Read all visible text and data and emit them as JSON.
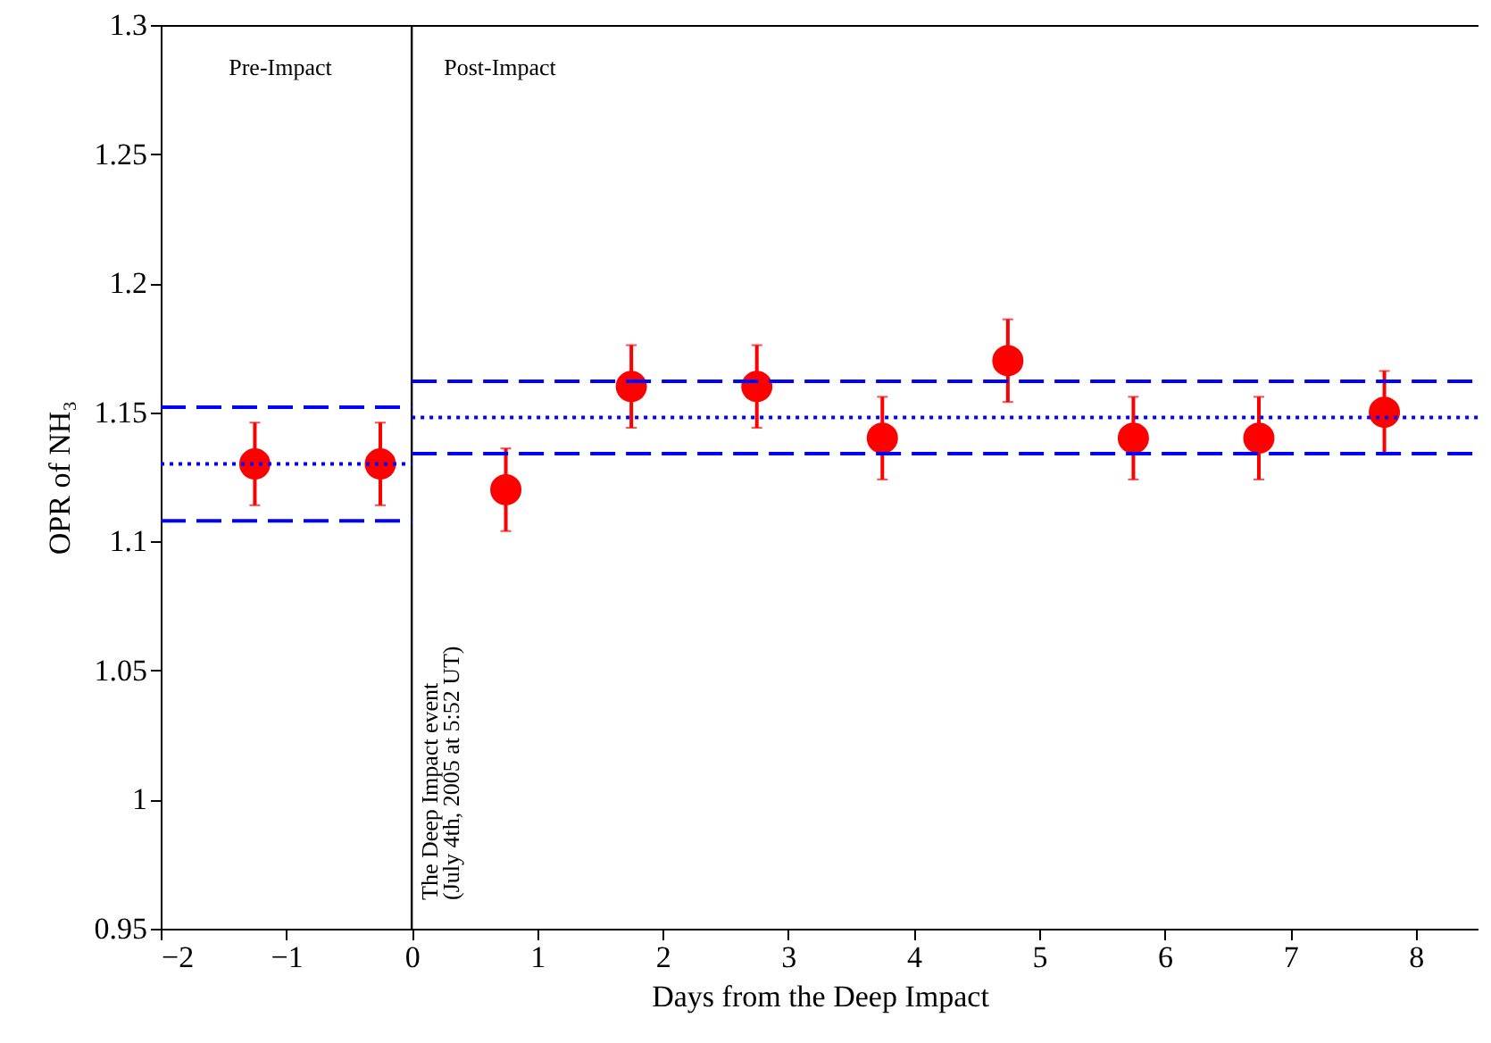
{
  "chart_data": {
    "type": "scatter",
    "xlabel": "Days from the Deep Impact",
    "ylabel": "OPR of NH₃",
    "xlim": [
      -2,
      8.5
    ],
    "xticks": [
      -2,
      -1,
      0,
      1,
      2,
      3,
      4,
      5,
      6,
      7,
      8
    ],
    "ylim": [
      0.95,
      1.3
    ],
    "yticks": [
      0.95,
      1,
      1.05,
      1.1,
      1.15,
      1.2,
      1.25,
      1.3
    ],
    "grid": false,
    "series": [
      {
        "marker": "circle",
        "color": "#ff0000",
        "x": [
          -1.25,
          -0.25,
          0.75,
          1.75,
          2.75,
          3.75,
          4.75,
          5.75,
          6.75,
          7.75
        ],
        "values": [
          1.13,
          1.13,
          1.12,
          1.16,
          1.16,
          1.14,
          1.17,
          1.14,
          1.14,
          1.15
        ],
        "errors": [
          0.016,
          0.016,
          0.016,
          0.016,
          0.016,
          0.016,
          0.016,
          0.016,
          0.016,
          0.016
        ]
      },
      {
        "type": "line",
        "color": "#0000ff",
        "line_style": "dashed",
        "x": [
          -2,
          0
        ],
        "values": [
          1.152,
          1.152
        ]
      },
      {
        "type": "line",
        "color": "#0000ff",
        "line_style": "dotted",
        "x": [
          -2,
          0
        ],
        "values": [
          1.13,
          1.13
        ]
      },
      {
        "type": "line",
        "color": "#0000ff",
        "line_style": "dashed",
        "x": [
          -2,
          0
        ],
        "values": [
          1.108,
          1.108
        ]
      },
      {
        "type": "line",
        "color": "#0000ff",
        "line_style": "dashed",
        "x": [
          0,
          8.5
        ],
        "values": [
          1.162,
          1.162
        ]
      },
      {
        "type": "line",
        "color": "#0000ff",
        "line_style": "dotted",
        "x": [
          0,
          8.5
        ],
        "values": [
          1.148,
          1.148
        ]
      },
      {
        "type": "line",
        "color": "#0000ff",
        "line_style": "dashed",
        "x": [
          0,
          8.5
        ],
        "values": [
          1.134,
          1.134
        ]
      }
    ],
    "ref_lines": [
      {
        "axis": "x",
        "value": 0,
        "color": "#000000"
      }
    ],
    "annotations": [
      "Pre-Impact",
      "Post-Impact",
      "The Deep Impact event",
      "(July 4th, 2005 at 5:52 UT)"
    ]
  }
}
